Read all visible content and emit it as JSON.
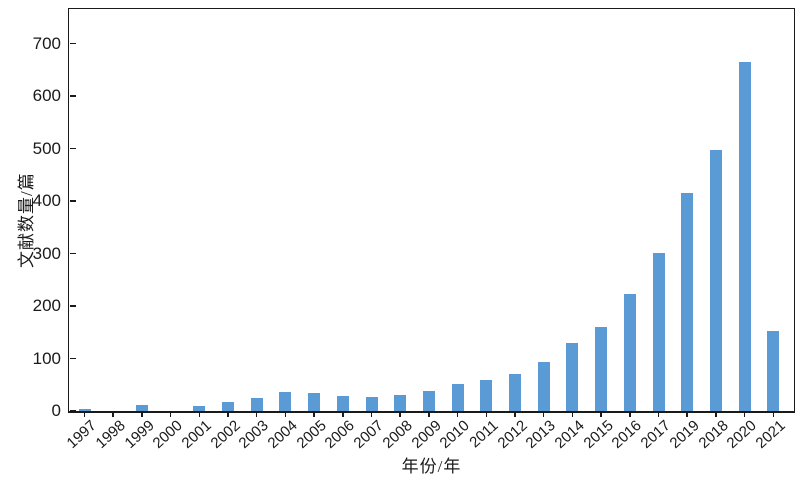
{
  "figure": {
    "background": "#ffffff",
    "bar_color": "#5b9bd5",
    "axis_color": "#1a1a1a",
    "text_color": "#1a1a1a"
  },
  "chart_data": {
    "type": "bar",
    "title": "",
    "xlabel": "年份/年",
    "ylabel": "文献数量/篇",
    "categories": [
      "1997",
      "1998",
      "1999",
      "2000",
      "2001",
      "2002",
      "2003",
      "2004",
      "2005",
      "2006",
      "2007",
      "2008",
      "2009",
      "2010",
      "2011",
      "2012",
      "2013",
      "2014",
      "2015",
      "2016",
      "2017",
      "2019",
      "2018",
      "2020",
      "2021"
    ],
    "values": [
      3,
      0,
      11,
      0,
      9,
      17,
      25,
      37,
      35,
      29,
      26,
      31,
      38,
      51,
      59,
      70,
      93,
      130,
      160,
      222,
      301,
      415,
      498,
      665,
      152
    ],
    "yticks": [
      0,
      100,
      200,
      300,
      400,
      500,
      600,
      700
    ],
    "ylim": [
      0,
      765
    ],
    "xtick_rotation_deg": 42,
    "grid": false,
    "legend_position": "none"
  }
}
